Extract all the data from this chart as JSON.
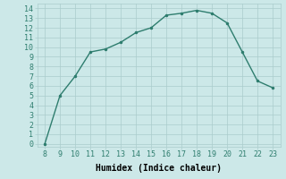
{
  "x": [
    8,
    9,
    10,
    11,
    12,
    13,
    14,
    15,
    16,
    17,
    18,
    19,
    20,
    21,
    22,
    23
  ],
  "y": [
    0,
    5,
    7,
    9.5,
    9.8,
    10.5,
    11.5,
    12.0,
    13.3,
    13.5,
    13.8,
    13.5,
    12.5,
    9.5,
    6.5,
    5.8
  ],
  "line_color": "#2e7d6e",
  "marker": ".",
  "markersize": 3,
  "linewidth": 1.0,
  "background_color": "#cce8e8",
  "grid_color": "#aacccc",
  "xlabel": "Humidex (Indice chaleur)",
  "xlabel_fontsize": 7,
  "xtick_labels": [
    "8",
    "9",
    "10",
    "11",
    "12",
    "13",
    "14",
    "15",
    "16",
    "17",
    "18",
    "19",
    "20",
    "21",
    "22",
    "23"
  ],
  "xtick_values": [
    8,
    9,
    10,
    11,
    12,
    13,
    14,
    15,
    16,
    17,
    18,
    19,
    20,
    21,
    22,
    23
  ],
  "ytick_values": [
    0,
    1,
    2,
    3,
    4,
    5,
    6,
    7,
    8,
    9,
    10,
    11,
    12,
    13,
    14
  ],
  "xlim": [
    7.5,
    23.5
  ],
  "ylim": [
    -0.3,
    14.5
  ],
  "tick_fontsize": 6
}
